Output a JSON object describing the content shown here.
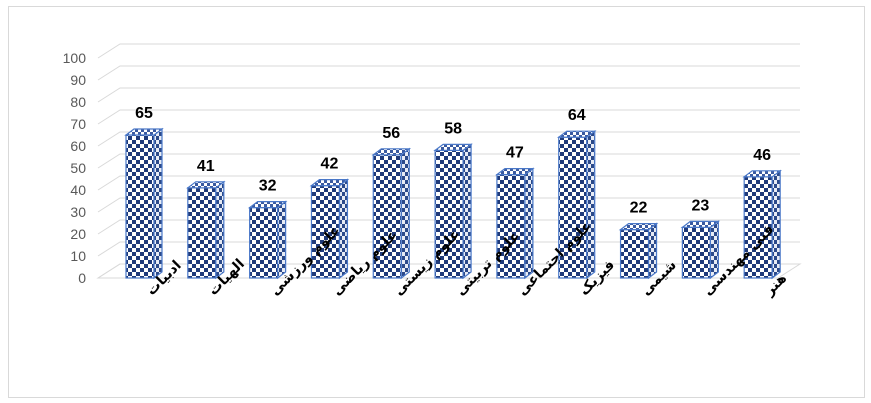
{
  "chart_data": {
    "type": "bar",
    "title": "",
    "xlabel": "",
    "ylabel": "",
    "categories": [
      "ادبیات",
      "الهیات",
      "علوم ورزشی",
      "علوم ریاضی",
      "علوم زیستی",
      "علوم تربیتی",
      "علوم اجتماعی",
      "فیزیک",
      "شیمی",
      "فنی مهندسی",
      "هنر"
    ],
    "values": [
      65,
      41,
      32,
      42,
      56,
      58,
      47,
      64,
      22,
      23,
      46
    ],
    "ylim": [
      0,
      100
    ],
    "yticks": [
      0,
      10,
      20,
      30,
      40,
      50,
      60,
      70,
      80,
      90,
      100
    ],
    "grid": true,
    "legend": "none",
    "style": "3d-column-checkered",
    "colors": {
      "bar_dark": "#1f3a7a",
      "bar_light": "#ffffff",
      "bar_edge": "#4a78c8",
      "grid": "#d9d9d9"
    }
  }
}
